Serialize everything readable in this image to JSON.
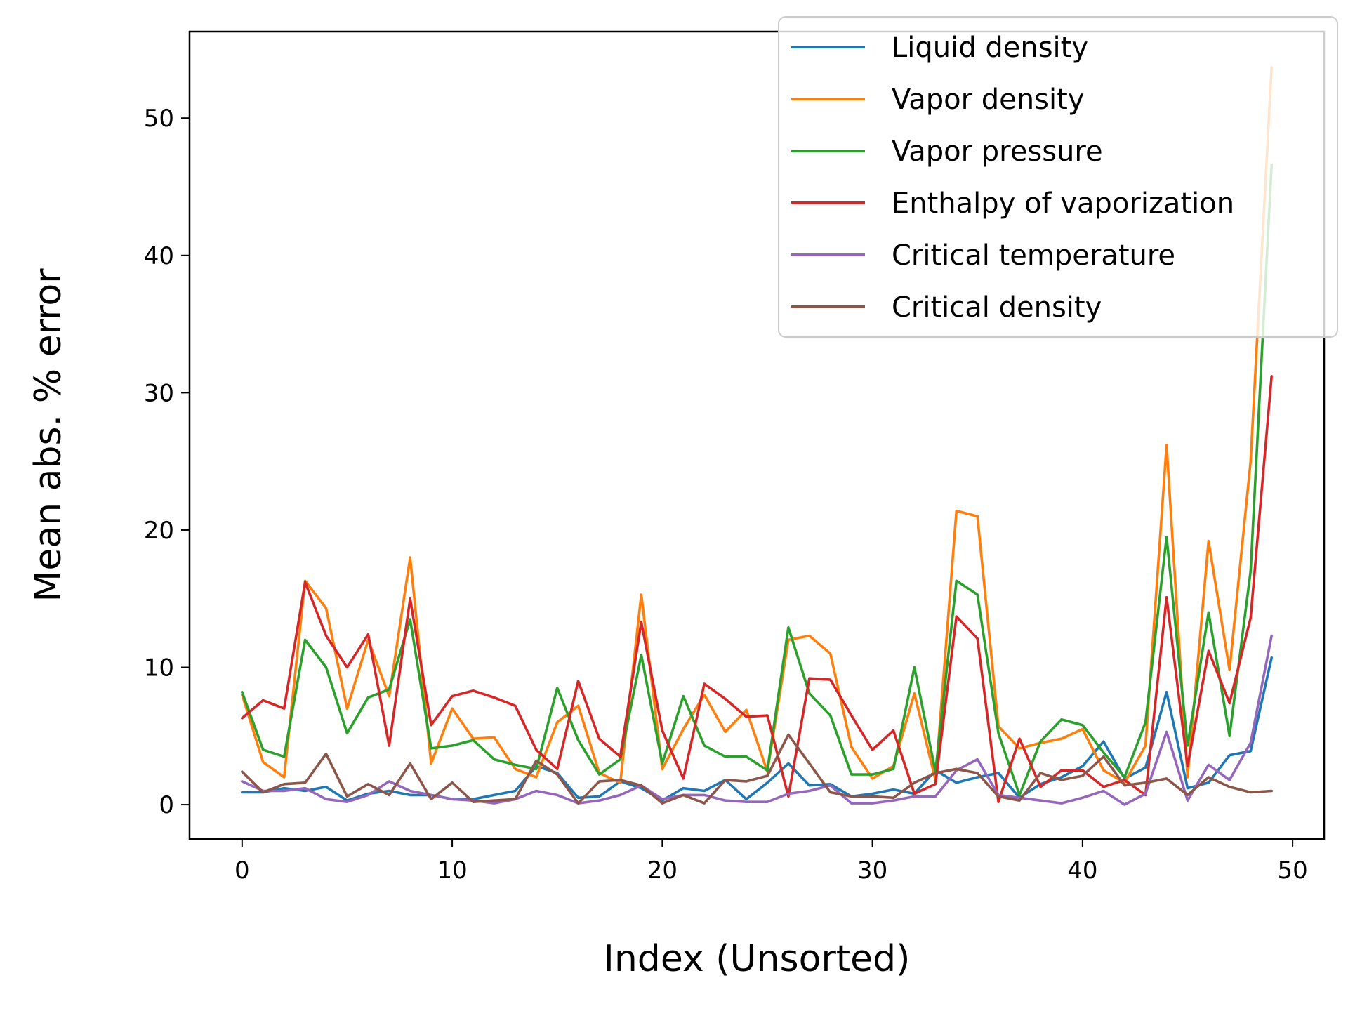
{
  "chart_data": {
    "type": "line",
    "title": "",
    "xlabel": "Index (Unsorted)",
    "ylabel": "Mean abs. % error",
    "xlim": [
      -2.5,
      51.5
    ],
    "ylim": [
      -2.5,
      56.3
    ],
    "xticks": [
      0,
      10,
      20,
      30,
      40,
      50
    ],
    "yticks": [
      0,
      10,
      20,
      30,
      40,
      50
    ],
    "grid": false,
    "legend_position": "top-right",
    "x": [
      0,
      1,
      2,
      3,
      4,
      5,
      6,
      7,
      8,
      9,
      10,
      11,
      12,
      13,
      14,
      15,
      16,
      17,
      18,
      19,
      20,
      21,
      22,
      23,
      24,
      25,
      26,
      27,
      28,
      29,
      30,
      31,
      32,
      33,
      34,
      35,
      36,
      37,
      38,
      39,
      40,
      41,
      42,
      43,
      44,
      45,
      46,
      47,
      48,
      49
    ],
    "series": [
      {
        "name": "Liquid density",
        "color": "#1f77b4",
        "values": [
          0.9,
          0.9,
          1.2,
          1.0,
          1.3,
          0.3,
          0.8,
          1.0,
          0.7,
          0.7,
          0.4,
          0.4,
          0.7,
          1.0,
          2.8,
          2.3,
          0.5,
          0.6,
          1.7,
          1.2,
          0.3,
          1.2,
          1.0,
          1.8,
          0.4,
          1.6,
          3.0,
          1.4,
          1.5,
          0.6,
          0.8,
          1.1,
          0.8,
          2.5,
          1.6,
          2.0,
          2.3,
          0.5,
          1.5,
          2.0,
          2.8,
          4.6,
          1.9,
          2.7,
          8.2,
          1.2,
          1.6,
          3.6,
          3.9,
          10.7
        ]
      },
      {
        "name": "Vapor density",
        "color": "#ff7f0e",
        "values": [
          8.0,
          3.1,
          2.0,
          16.3,
          14.3,
          7.0,
          12.0,
          7.9,
          18.0,
          3.0,
          7.0,
          4.8,
          4.9,
          2.6,
          2.0,
          6.0,
          7.2,
          2.3,
          1.6,
          15.3,
          2.6,
          5.5,
          8.0,
          5.3,
          6.9,
          2.4,
          12.0,
          12.3,
          11.0,
          4.2,
          1.9,
          2.8,
          8.1,
          1.8,
          21.4,
          21.0,
          5.7,
          4.1,
          4.5,
          4.8,
          5.5,
          2.5,
          1.6,
          4.3,
          26.2,
          2.0,
          19.2,
          9.8,
          25.0,
          53.7
        ]
      },
      {
        "name": "Vapor pressure",
        "color": "#2ca02c",
        "values": [
          8.2,
          4.0,
          3.5,
          12.0,
          10.0,
          5.2,
          7.8,
          8.4,
          13.5,
          4.1,
          4.3,
          4.7,
          3.3,
          2.9,
          2.6,
          8.5,
          4.7,
          2.2,
          3.3,
          10.9,
          3.0,
          7.9,
          4.3,
          3.5,
          3.5,
          2.5,
          12.9,
          8.1,
          6.5,
          2.2,
          2.2,
          2.6,
          10.0,
          2.4,
          16.3,
          15.3,
          5.2,
          0.7,
          4.6,
          6.2,
          5.8,
          3.8,
          2.0,
          6.0,
          19.5,
          4.3,
          14.0,
          5.0,
          17.0,
          46.6
        ]
      },
      {
        "name": "Enthalpy of vaporization",
        "color": "#d62728",
        "values": [
          6.3,
          7.6,
          7.0,
          16.2,
          12.3,
          10.0,
          12.4,
          4.3,
          15.0,
          5.8,
          7.9,
          8.3,
          7.8,
          7.2,
          4.0,
          2.6,
          9.0,
          4.8,
          3.5,
          13.3,
          5.4,
          1.9,
          8.8,
          7.7,
          6.4,
          6.5,
          0.6,
          9.2,
          9.1,
          6.5,
          4.0,
          5.4,
          0.8,
          1.5,
          13.7,
          12.1,
          0.2,
          4.8,
          1.3,
          2.5,
          2.5,
          1.3,
          1.8,
          0.7,
          15.1,
          2.8,
          11.2,
          7.4,
          13.6,
          31.2
        ]
      },
      {
        "name": "Critical temperature",
        "color": "#9467bd",
        "values": [
          1.7,
          1.0,
          1.0,
          1.2,
          0.4,
          0.2,
          0.7,
          1.7,
          1.0,
          0.7,
          0.4,
          0.3,
          0.1,
          0.4,
          1.0,
          0.7,
          0.1,
          0.3,
          0.7,
          1.4,
          0.4,
          0.7,
          0.7,
          0.3,
          0.2,
          0.2,
          0.8,
          1.0,
          1.4,
          0.1,
          0.1,
          0.3,
          0.6,
          0.6,
          2.5,
          3.3,
          0.7,
          0.5,
          0.3,
          0.1,
          0.5,
          1.0,
          0.0,
          0.8,
          5.3,
          0.3,
          2.9,
          1.8,
          4.5,
          12.3
        ]
      },
      {
        "name": "Critical density",
        "color": "#8c564b",
        "values": [
          2.4,
          0.9,
          1.5,
          1.6,
          3.7,
          0.6,
          1.5,
          0.7,
          3.0,
          0.4,
          1.6,
          0.2,
          0.3,
          0.4,
          3.2,
          2.2,
          0.1,
          1.7,
          1.8,
          1.4,
          0.1,
          0.7,
          0.1,
          1.8,
          1.7,
          2.1,
          5.1,
          3.0,
          0.9,
          0.6,
          0.6,
          0.5,
          1.6,
          2.3,
          2.6,
          2.3,
          0.6,
          0.3,
          2.3,
          1.8,
          2.1,
          3.5,
          1.4,
          1.6,
          1.9,
          0.7,
          2.0,
          1.3,
          0.9,
          1.0
        ]
      }
    ]
  }
}
